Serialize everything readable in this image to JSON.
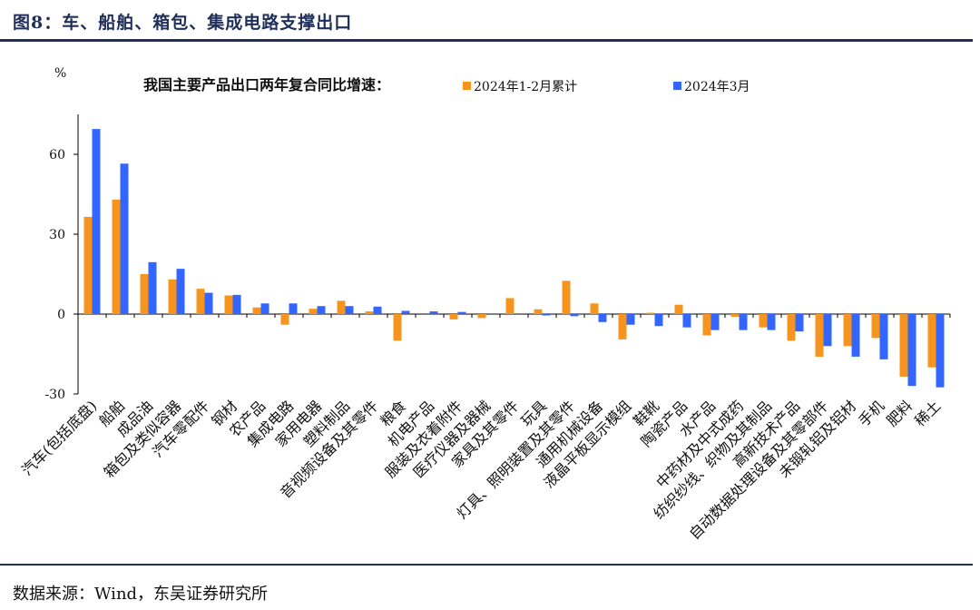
{
  "figure_title": "图8：车、船舶、箱包、集成电路支撑出口",
  "source": "数据来源：Wind，东吴证券研究所",
  "chart_data": {
    "type": "bar",
    "title": "我国主要产品出口两年复合同比增速：",
    "ylabel": "%",
    "ylim": [
      -30,
      75
    ],
    "yticks": [
      -30,
      0,
      30,
      60
    ],
    "grid": false,
    "legend_position": "top",
    "categories": [
      "汽车(包括底盘)",
      "船舶",
      "成品油",
      "箱包及类似容器",
      "汽车零配件",
      "钢材",
      "农产品",
      "集成电路",
      "家用电器",
      "塑料制品",
      "音视频设备及其零件",
      "粮食",
      "机电产品",
      "服装及衣着附件",
      "医疗仪器及器械",
      "家具及其零件",
      "玩具",
      "灯具、照明装置及其零件",
      "通用机械设备",
      "液晶平板显示模组",
      "鞋靴",
      "陶瓷产品",
      "水产品",
      "中药材及中式成药",
      "纺织纱线、织物及其制品",
      "高新技术产品",
      "自动数据处理设备及其零部件",
      "未锻轧铝及铝材",
      "手机",
      "肥料",
      "稀土"
    ],
    "series": [
      {
        "name": "2024年1-2月累计",
        "color": "#F7941D",
        "values": [
          36.5,
          43,
          15,
          13,
          9.5,
          7,
          2.5,
          -4,
          2,
          5,
          1,
          -10,
          0,
          -2,
          -1.5,
          6,
          1.8,
          12.5,
          4,
          -9.5,
          0.5,
          3.5,
          -8,
          -1,
          -5,
          -10,
          -16,
          -12,
          -9,
          -23.5,
          -20
        ]
      },
      {
        "name": "2024年3月",
        "color": "#3366FF",
        "values": [
          69.5,
          56.5,
          19.5,
          17,
          8,
          7.2,
          4,
          4,
          3,
          3,
          2.8,
          1.2,
          1,
          0.8,
          0,
          0,
          -0.5,
          -0.8,
          -3,
          -4,
          -4.5,
          -5,
          -6,
          -6,
          -6,
          -6.5,
          -12,
          -16,
          -17,
          -27,
          -27.5
        ]
      }
    ]
  }
}
